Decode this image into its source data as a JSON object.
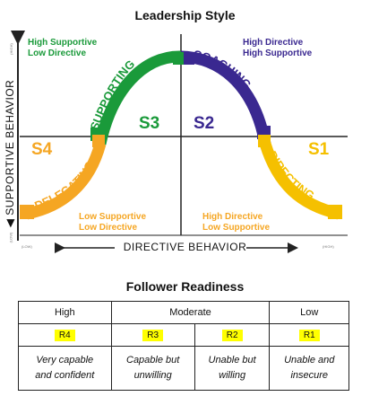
{
  "leadership": {
    "title": "Leadership Style",
    "y_axis": {
      "title": "SUPPORTIVE BEHAVIOR",
      "high": "(HIGH)",
      "low": "(LOW)"
    },
    "x_axis": {
      "title": "DIRECTIVE BEHAVIOR",
      "low": "(LOW)",
      "high": "(HIGH)"
    },
    "quadrant_labels": {
      "top_left": {
        "line1": "High Supportive",
        "line2": "Low Directive"
      },
      "top_right": {
        "line1": "High Directive",
        "line2": "High Supportive"
      },
      "bottom_left": {
        "line1": "Low Supportive",
        "line2": "Low Directive"
      },
      "bottom_right": {
        "line1": "High Directive",
        "line2": "Low Supportive"
      }
    },
    "styles": {
      "s1": "S1",
      "s2": "S2",
      "s3": "S3",
      "s4": "S4",
      "directing": "DIRECTING",
      "coaching": "COACHING",
      "supporting": "SUPPORTING",
      "delegating": "DELEGATING"
    },
    "colors": {
      "green": "#1a9a3a",
      "purple": "#3a2890",
      "orange": "#f5a623",
      "yellow": "#f5c000",
      "grid": "#222222"
    }
  },
  "readiness": {
    "title": "Follower Readiness",
    "headers": {
      "high": "High",
      "moderate": "Moderate",
      "low": "Low"
    },
    "codes": {
      "r4": "R4",
      "r3": "R3",
      "r2": "R2",
      "r1": "R1"
    },
    "descriptions": {
      "r4": {
        "line1": "Very capable",
        "line2": "and confident"
      },
      "r3": {
        "line1": "Capable but",
        "line2": "unwilling"
      },
      "r2": {
        "line1": "Unable but",
        "line2": "willing"
      },
      "r1": {
        "line1": "Unable and",
        "line2": "insecure"
      }
    },
    "highlight_color": "#ffff00"
  }
}
